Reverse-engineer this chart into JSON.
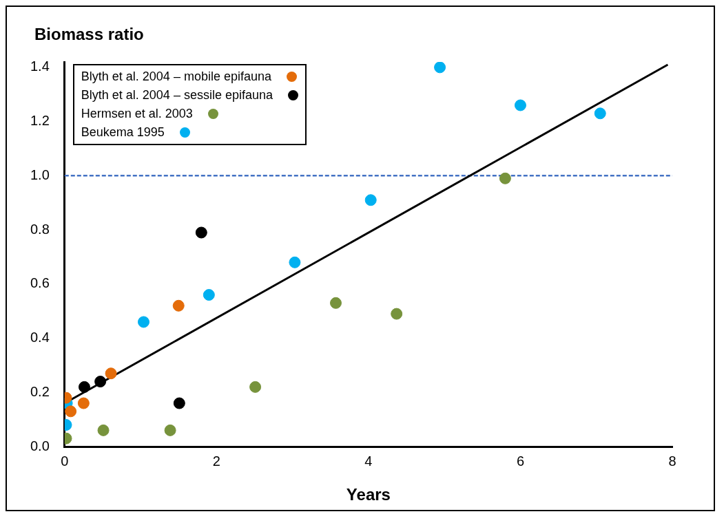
{
  "chart_data": {
    "type": "scatter",
    "ylabel": "Biomass ratio",
    "xlabel": "Years",
    "xlim": [
      0,
      8
    ],
    "xticks": [
      0,
      2,
      4,
      6,
      8
    ],
    "ylim": [
      0,
      1.42
    ],
    "yticks": [
      {
        "value": 0,
        "label": "0.0"
      },
      {
        "value": 0.2,
        "label": "0.2"
      },
      {
        "value": 0.4,
        "label": "0.4"
      },
      {
        "value": 0.6,
        "label": "0.6"
      },
      {
        "value": 0.8,
        "label": "0.8"
      },
      {
        "value": 1,
        "label": "1.0"
      },
      {
        "value": 1.2,
        "label": "1.2"
      },
      {
        "value": 1.4,
        "label": "1.4"
      }
    ],
    "grid": false,
    "legend": "top left",
    "marker": "circle",
    "series": [
      {
        "name": "Blyth et al. 2004 – mobile epifauna",
        "color": "#e46c0a",
        "x": [
          0.02,
          0.08,
          0.25,
          0.61,
          1.5
        ],
        "values": [
          0.18,
          0.13,
          0.16,
          0.27,
          0.52
        ]
      },
      {
        "name": "Blyth et al. 2004 – sessile epifauna",
        "color": "#000000",
        "x": [
          0.26,
          0.47,
          1.51,
          1.8
        ],
        "values": [
          0.22,
          0.24,
          0.16,
          0.79
        ]
      },
      {
        "name": "Hermsen et al. 2003",
        "color": "#77933c",
        "x": [
          0.02,
          0.51,
          1.39,
          2.51,
          3.57,
          4.37,
          5.8
        ],
        "values": [
          0.03,
          0.06,
          0.06,
          0.22,
          0.53,
          0.49,
          0.99
        ]
      },
      {
        "name": "Beukema 1995",
        "color": "#00b0f0",
        "x": [
          0.03,
          0.02,
          1.04,
          1.9,
          3.03,
          4.03,
          4.94,
          6.0,
          7.05
        ],
        "values": [
          0.16,
          0.08,
          0.46,
          0.56,
          0.68,
          0.91,
          1.4,
          1.26,
          1.23
        ]
      },
      {
        "type": "line",
        "marker": "none",
        "color": "#000000",
        "x": [
          0,
          7.94
        ],
        "values": [
          0.16,
          1.41
        ]
      }
    ],
    "ref_lines": [
      {
        "axis": "y",
        "value": 1.0,
        "color": "#4472c4",
        "line_style": "dashed"
      }
    ]
  }
}
